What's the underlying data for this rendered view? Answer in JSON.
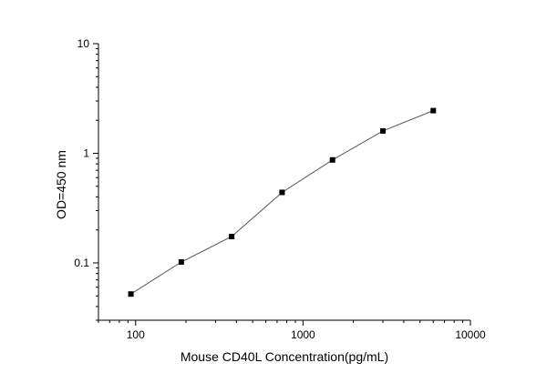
{
  "chart_data": {
    "type": "scatter",
    "title": "",
    "xlabel": "Mouse CD40L Concentration(pg/mL)",
    "ylabel": "OD=450 nm",
    "x_scale": "log",
    "y_scale": "log",
    "xlim": [
      60,
      10000
    ],
    "ylim": [
      0.03,
      10
    ],
    "x_ticks": [
      100,
      1000,
      10000
    ],
    "x_tick_labels": [
      "100",
      "1000",
      "10000"
    ],
    "y_ticks": [
      0.1,
      1,
      10
    ],
    "y_tick_labels": [
      "0.1",
      "1",
      "10"
    ],
    "grid": false,
    "legend": "none",
    "series": [
      {
        "x": [
          93.75,
          187.5,
          375,
          750,
          1500,
          3000,
          6000
        ],
        "y": [
          0.052,
          0.102,
          0.174,
          0.44,
          0.87,
          1.6,
          2.45
        ],
        "marker": "square",
        "connected": true,
        "marker_color": "#000000",
        "line_color": "#555555"
      }
    ]
  }
}
